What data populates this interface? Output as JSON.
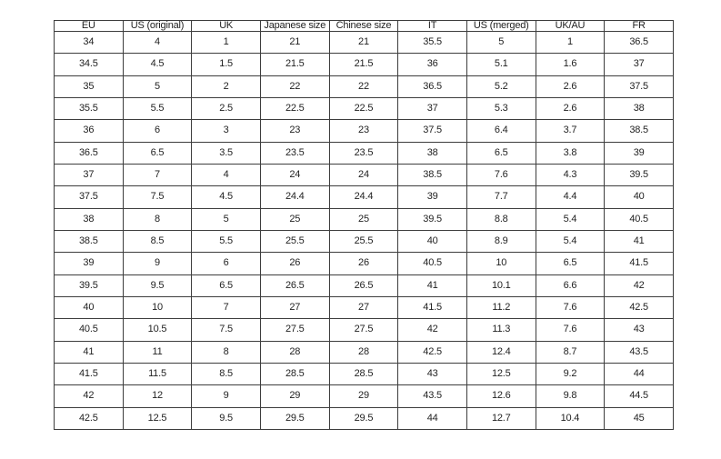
{
  "page": {
    "background_color": "#ffffff",
    "border_color": "#3d3d3d",
    "text_color": "#1f1f1f"
  },
  "table": {
    "columns": [
      "EU",
      "US (original)",
      "UK",
      "Japanese size",
      "Chinese size",
      "IT",
      "US (merged)",
      "UK/AU",
      "FR"
    ],
    "rows": [
      [
        "34",
        "4",
        "1",
        "21",
        "21",
        "35.5",
        "5",
        "1",
        "36.5"
      ],
      [
        "34.5",
        "4.5",
        "1.5",
        "21.5",
        "21.5",
        "36",
        "5.1",
        "1.6",
        "37"
      ],
      [
        "35",
        "5",
        "2",
        "22",
        "22",
        "36.5",
        "5.2",
        "2.6",
        "37.5"
      ],
      [
        "35.5",
        "5.5",
        "2.5",
        "22.5",
        "22.5",
        "37",
        "5.3",
        "2.6",
        "38"
      ],
      [
        "36",
        "6",
        "3",
        "23",
        "23",
        "37.5",
        "6.4",
        "3.7",
        "38.5"
      ],
      [
        "36.5",
        "6.5",
        "3.5",
        "23.5",
        "23.5",
        "38",
        "6.5",
        "3.8",
        "39"
      ],
      [
        "37",
        "7",
        "4",
        "24",
        "24",
        "38.5",
        "7.6",
        "4.3",
        "39.5"
      ],
      [
        "37.5",
        "7.5",
        "4.5",
        "24.4",
        "24.4",
        "39",
        "7.7",
        "4.4",
        "40"
      ],
      [
        "38",
        "8",
        "5",
        "25",
        "25",
        "39.5",
        "8.8",
        "5.4",
        "40.5"
      ],
      [
        "38.5",
        "8.5",
        "5.5",
        "25.5",
        "25.5",
        "40",
        "8.9",
        "5.4",
        "41"
      ],
      [
        "39",
        "9",
        "6",
        "26",
        "26",
        "40.5",
        "10",
        "6.5",
        "41.5"
      ],
      [
        "39.5",
        "9.5",
        "6.5",
        "26.5",
        "26.5",
        "41",
        "10.1",
        "6.6",
        "42"
      ],
      [
        "40",
        "10",
        "7",
        "27",
        "27",
        "41.5",
        "11.2",
        "7.6",
        "42.5"
      ],
      [
        "40.5",
        "10.5",
        "7.5",
        "27.5",
        "27.5",
        "42",
        "11.3",
        "7.6",
        "43"
      ],
      [
        "41",
        "11",
        "8",
        "28",
        "28",
        "42.5",
        "12.4",
        "8.7",
        "43.5"
      ],
      [
        "41.5",
        "11.5",
        "8.5",
        "28.5",
        "28.5",
        "43",
        "12.5",
        "9.2",
        "44"
      ],
      [
        "42",
        "12",
        "9",
        "29",
        "29",
        "43.5",
        "12.6",
        "9.8",
        "44.5"
      ],
      [
        "42.5",
        "12.5",
        "9.5",
        "29.5",
        "29.5",
        "44",
        "12.7",
        "10.4",
        "45"
      ]
    ]
  }
}
